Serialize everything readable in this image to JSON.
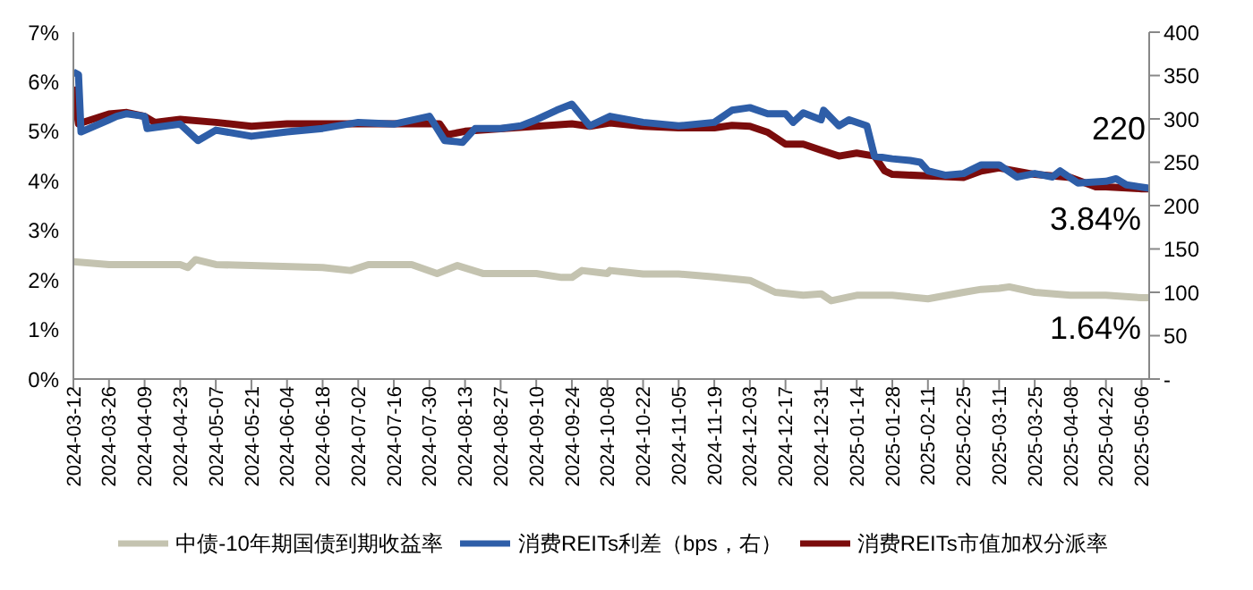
{
  "chart_data": {
    "type": "line",
    "legend": "bottom",
    "marker": "none",
    "line_style": "solid",
    "grid": false,
    "xlim": [
      "2024-03-12",
      "2025-05-09"
    ],
    "xticks": [
      "2024-03-12",
      "2024-03-26",
      "2024-04-09",
      "2024-04-23",
      "2024-05-07",
      "2024-05-21",
      "2024-06-04",
      "2024-06-18",
      "2024-07-02",
      "2024-07-16",
      "2024-07-30",
      "2024-08-13",
      "2024-08-27",
      "2024-09-10",
      "2024-09-24",
      "2024-10-08",
      "2024-10-22",
      "2024-11-05",
      "2024-11-19",
      "2024-12-03",
      "2024-12-17",
      "2024-12-31",
      "2025-01-14",
      "2025-01-28",
      "2025-02-11",
      "2025-02-25",
      "2025-03-11",
      "2025-03-25",
      "2025-04-08",
      "2025-04-22",
      "2025-05-06"
    ],
    "ylim": [
      0,
      7
    ],
    "yticks": [
      {
        "value": 0,
        "label": "0%"
      },
      {
        "value": 1,
        "label": "1%"
      },
      {
        "value": 2,
        "label": "2%"
      },
      {
        "value": 3,
        "label": "3%"
      },
      {
        "value": 4,
        "label": "4%"
      },
      {
        "value": 5,
        "label": "5%"
      },
      {
        "value": 6,
        "label": "6%"
      },
      {
        "value": 7,
        "label": "7%"
      }
    ],
    "y2lim": [
      0,
      400
    ],
    "y2ticks": [
      {
        "value": 0,
        "label": "-"
      },
      50,
      100,
      150,
      200,
      250,
      300,
      350,
      400
    ],
    "annotations": [
      "220",
      {
        "text": "3.84%",
        "x": "2025-05-09",
        "y": 3.84
      },
      {
        "text": "1.64%",
        "x": "2025-05-09",
        "y": 1.64
      }
    ],
    "series": [
      {
        "name": "消费REITs市值加权分派率",
        "color": "#7b0c0c",
        "x": [
          "2024-03-12",
          "2024-03-14",
          "2024-03-26",
          "2024-04-02",
          "2024-04-09",
          "2024-04-13",
          "2024-04-23",
          "2024-05-07",
          "2024-05-21",
          "2024-06-04",
          "2024-07-02",
          "2024-08-03",
          "2024-08-06",
          "2024-08-13",
          "2024-08-27",
          "2024-09-10",
          "2024-09-24",
          "2024-10-01",
          "2024-10-09",
          "2024-10-22",
          "2024-11-05",
          "2024-11-19",
          "2024-11-26",
          "2024-12-03",
          "2024-12-10",
          "2024-12-17",
          "2024-12-24",
          "2024-12-31",
          "2025-01-07",
          "2025-01-14",
          "2025-01-21",
          "2025-01-25",
          "2025-01-28",
          "2025-02-11",
          "2025-02-25",
          "2025-03-04",
          "2025-03-11",
          "2025-03-25",
          "2025-04-08",
          "2025-04-18",
          "2025-04-22",
          "2025-05-06",
          "2025-05-09"
        ],
        "values": [
          5.9,
          5.15,
          5.35,
          5.38,
          5.3,
          5.18,
          5.24,
          5.18,
          5.1,
          5.15,
          5.15,
          5.15,
          4.93,
          5.0,
          5.05,
          5.1,
          5.15,
          5.1,
          5.17,
          5.1,
          5.07,
          5.07,
          5.12,
          5.1,
          4.98,
          4.74,
          4.74,
          4.62,
          4.5,
          4.56,
          4.5,
          4.2,
          4.13,
          4.1,
          4.07,
          4.2,
          4.26,
          4.13,
          4.07,
          3.88,
          3.88,
          3.84,
          3.84
        ]
      },
      {
        "name": "中债-10年期国债到期收益率",
        "color": "#c4c3b0",
        "x": [
          "2024-03-12",
          "2024-03-26",
          "2024-04-23",
          "2024-04-26",
          "2024-04-29",
          "2024-05-07",
          "2024-06-18",
          "2024-06-29",
          "2024-07-06",
          "2024-07-23",
          "2024-08-02",
          "2024-08-10",
          "2024-08-20",
          "2024-09-10",
          "2024-09-20",
          "2024-09-24",
          "2024-09-28",
          "2024-10-08",
          "2024-10-09",
          "2024-10-22",
          "2024-11-05",
          "2024-11-19",
          "2024-12-03",
          "2024-12-13",
          "2024-12-24",
          "2024-12-31",
          "2025-01-04",
          "2025-01-14",
          "2025-01-28",
          "2025-02-11",
          "2025-02-25",
          "2025-03-04",
          "2025-03-11",
          "2025-03-15",
          "2025-03-25",
          "2025-04-08",
          "2025-04-22",
          "2025-05-06",
          "2025-05-09"
        ],
        "values": [
          2.37,
          2.31,
          2.31,
          2.25,
          2.41,
          2.31,
          2.25,
          2.19,
          2.31,
          2.31,
          2.13,
          2.29,
          2.13,
          2.13,
          2.05,
          2.05,
          2.19,
          2.13,
          2.19,
          2.12,
          2.12,
          2.06,
          1.99,
          1.75,
          1.69,
          1.72,
          1.58,
          1.69,
          1.69,
          1.62,
          1.75,
          1.81,
          1.83,
          1.86,
          1.75,
          1.69,
          1.69,
          1.64,
          1.64
        ]
      },
      {
        "name": "消费REITs利差（bps，右）",
        "color": "#2e5ea8",
        "axis": "y2",
        "x": [
          "2024-03-12",
          "2024-03-14",
          "2024-03-15",
          "2024-03-26",
          "2024-03-29",
          "2024-04-02",
          "2024-04-09",
          "2024-04-10",
          "2024-04-23",
          "2024-04-30",
          "2024-05-07",
          "2024-05-21",
          "2024-06-04",
          "2024-06-18",
          "2024-07-02",
          "2024-07-16",
          "2024-07-30",
          "2024-08-05",
          "2024-08-12",
          "2024-08-17",
          "2024-08-27",
          "2024-09-04",
          "2024-09-10",
          "2024-09-18",
          "2024-09-24",
          "2024-10-01",
          "2024-10-09",
          "2024-10-22",
          "2024-11-05",
          "2024-11-19",
          "2024-11-26",
          "2024-12-03",
          "2024-12-10",
          "2024-12-17",
          "2024-12-20",
          "2024-12-24",
          "2024-12-31",
          "2025-01-01",
          "2025-01-07",
          "2025-01-11",
          "2025-01-18",
          "2025-01-21",
          "2025-01-28",
          "2025-02-04",
          "2025-02-08",
          "2025-02-11",
          "2025-02-18",
          "2025-02-25",
          "2025-03-04",
          "2025-03-11",
          "2025-03-18",
          "2025-03-25",
          "2025-04-01",
          "2025-04-04",
          "2025-04-11",
          "2025-04-22",
          "2025-04-26",
          "2025-04-30",
          "2025-05-09"
        ],
        "values": [
          354,
          351,
          285,
          299,
          303,
          306,
          303,
          289,
          294,
          275,
          287,
          280,
          285,
          289,
          296,
          294,
          303,
          275,
          273,
          289,
          289,
          292,
          299,
          310,
          317,
          292,
          303,
          296,
          292,
          296,
          310,
          313,
          306,
          306,
          296,
          307,
          299,
          310,
          292,
          299,
          292,
          257,
          254,
          252,
          250,
          240,
          235,
          237,
          247,
          247,
          233,
          237,
          233,
          240,
          226,
          228,
          231,
          224,
          220
        ]
      }
    ]
  }
}
